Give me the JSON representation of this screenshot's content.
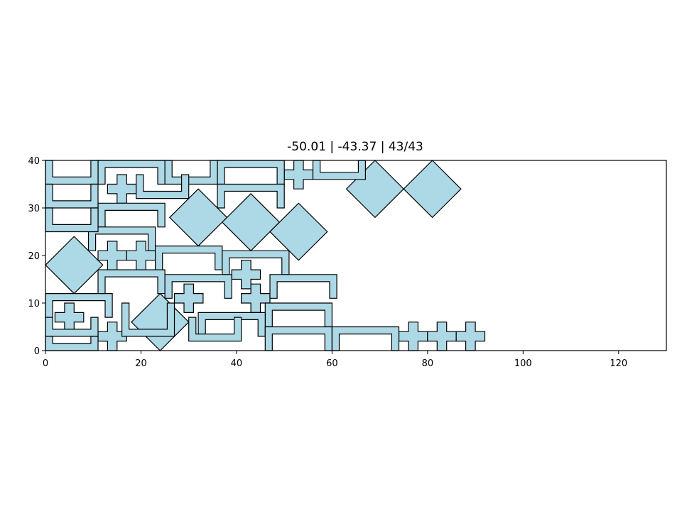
{
  "chart_data": {
    "type": "scatter",
    "title": "-50.01 | -43.37 | 43/43",
    "xlabel": "",
    "ylabel": "",
    "xlim": [
      0,
      130
    ],
    "ylim": [
      0,
      40
    ],
    "xticks": [
      0,
      20,
      40,
      60,
      80,
      100,
      120
    ],
    "yticks": [
      0,
      10,
      20,
      30,
      40
    ],
    "grid": false,
    "fill_color": "#add8e6",
    "edge_color": "#000000",
    "placed_shapes": [
      {
        "kind": "diamond",
        "cx": 69,
        "cy": 34,
        "r": 6
      },
      {
        "kind": "diamond",
        "cx": 81,
        "cy": 34,
        "r": 6
      },
      {
        "kind": "diamond",
        "cx": 32,
        "cy": 28,
        "r": 6
      },
      {
        "kind": "diamond",
        "cx": 43,
        "cy": 27,
        "r": 6
      },
      {
        "kind": "diamond",
        "cx": 53,
        "cy": 25,
        "r": 6
      },
      {
        "kind": "diamond",
        "cx": 6,
        "cy": 18,
        "r": 6
      },
      {
        "kind": "diamond",
        "cx": 24,
        "cy": 6,
        "r": 6
      },
      {
        "kind": "cross",
        "cx": 16,
        "cy": 34,
        "w": 6,
        "t": 2
      },
      {
        "kind": "cross",
        "cx": 53,
        "cy": 37,
        "w": 6,
        "t": 2
      },
      {
        "kind": "cross",
        "cx": 14,
        "cy": 20,
        "w": 6,
        "t": 2
      },
      {
        "kind": "cross",
        "cx": 20,
        "cy": 20,
        "w": 6,
        "t": 2
      },
      {
        "kind": "cross",
        "cx": 42,
        "cy": 16,
        "w": 6,
        "t": 2
      },
      {
        "kind": "cross",
        "cx": 30,
        "cy": 11,
        "w": 6,
        "t": 2
      },
      {
        "kind": "cross",
        "cx": 44,
        "cy": 11,
        "w": 6,
        "t": 2
      },
      {
        "kind": "cross",
        "cx": 5,
        "cy": 7,
        "w": 6,
        "t": 2
      },
      {
        "kind": "cross",
        "cx": 14,
        "cy": 3,
        "w": 6,
        "t": 2
      },
      {
        "kind": "cross",
        "cx": 77,
        "cy": 3,
        "w": 6,
        "t": 2
      },
      {
        "kind": "cross",
        "cx": 83,
        "cy": 3,
        "w": 6,
        "t": 2
      },
      {
        "kind": "cross",
        "cx": 89,
        "cy": 3,
        "w": 6,
        "t": 2
      },
      {
        "kind": "channel",
        "x0": 11,
        "y0": 35,
        "x1": 25,
        "y1": 40,
        "t": 1.5,
        "open": "down"
      },
      {
        "kind": "channel",
        "x0": 36,
        "y0": 35,
        "x1": 50,
        "y1": 40,
        "t": 1.5,
        "open": "down"
      },
      {
        "kind": "channel",
        "x0": 36,
        "y0": 30,
        "x1": 50,
        "y1": 35,
        "t": 1.5,
        "open": "down"
      },
      {
        "kind": "channel",
        "x0": 11,
        "y0": 26,
        "x1": 25,
        "y1": 31,
        "t": 1.5,
        "open": "down"
      },
      {
        "kind": "channel",
        "x0": 9,
        "y0": 21,
        "x1": 23,
        "y1": 26,
        "t": 1.5,
        "open": "down"
      },
      {
        "kind": "channel",
        "x0": 23,
        "y0": 17,
        "x1": 37,
        "y1": 22,
        "t": 1.5,
        "open": "down"
      },
      {
        "kind": "channel",
        "x0": 37,
        "y0": 16,
        "x1": 51,
        "y1": 21,
        "t": 1.5,
        "open": "down"
      },
      {
        "kind": "channel",
        "x0": 11,
        "y0": 12,
        "x1": 25,
        "y1": 17,
        "t": 1.5,
        "open": "down"
      },
      {
        "kind": "channel",
        "x0": 25,
        "y0": 11,
        "x1": 39,
        "y1": 16,
        "t": 1.5,
        "open": "down"
      },
      {
        "kind": "channel",
        "x0": 47,
        "y0": 11,
        "x1": 61,
        "y1": 16,
        "t": 1.5,
        "open": "down"
      },
      {
        "kind": "channel",
        "x0": 0,
        "y0": 7,
        "x1": 14,
        "y1": 12,
        "t": 1.5,
        "open": "down"
      },
      {
        "kind": "channel",
        "x0": 46,
        "y0": 5,
        "x1": 60,
        "y1": 10,
        "t": 1.5,
        "open": "down"
      },
      {
        "kind": "channel",
        "x0": 32,
        "y0": 3,
        "x1": 46,
        "y1": 8,
        "t": 1.5,
        "open": "down"
      },
      {
        "kind": "channel",
        "x0": 46,
        "y0": 0,
        "x1": 60,
        "y1": 5,
        "t": 1.5,
        "open": "down"
      },
      {
        "kind": "channel",
        "x0": 60,
        "y0": 0,
        "x1": 74,
        "y1": 5,
        "t": 1.5,
        "open": "down"
      },
      {
        "kind": "channel",
        "x0": 0,
        "y0": 35,
        "x1": 11,
        "y1": 40,
        "t": 1.5,
        "open": "up"
      },
      {
        "kind": "channel",
        "x0": 25,
        "y0": 35,
        "x1": 36,
        "y1": 40,
        "t": 1.5,
        "open": "up"
      },
      {
        "kind": "channel",
        "x0": 56,
        "y0": 36,
        "x1": 67,
        "y1": 40,
        "t": 1.5,
        "open": "up"
      },
      {
        "kind": "channel",
        "x0": 0,
        "y0": 30,
        "x1": 11,
        "y1": 35,
        "t": 1.5,
        "open": "up"
      },
      {
        "kind": "channel",
        "x0": 19,
        "y0": 32,
        "x1": 30,
        "y1": 37,
        "t": 1.5,
        "open": "up"
      },
      {
        "kind": "channel",
        "x0": 0,
        "y0": 25,
        "x1": 11,
        "y1": 30,
        "t": 1.5,
        "open": "up"
      },
      {
        "kind": "channel",
        "x0": 16,
        "y0": 3,
        "x1": 27,
        "y1": 10,
        "t": 1.5,
        "open": "up"
      },
      {
        "kind": "channel",
        "x0": 0,
        "y0": 3,
        "x1": 11,
        "y1": 7,
        "t": 1.5,
        "open": "up"
      },
      {
        "kind": "channel",
        "x0": 30,
        "y0": 2,
        "x1": 41,
        "y1": 7,
        "t": 1.5,
        "open": "up"
      },
      {
        "kind": "channel",
        "x0": 0,
        "y0": 0,
        "x1": 11,
        "y1": 3,
        "t": 1.5,
        "open": "up"
      }
    ]
  }
}
